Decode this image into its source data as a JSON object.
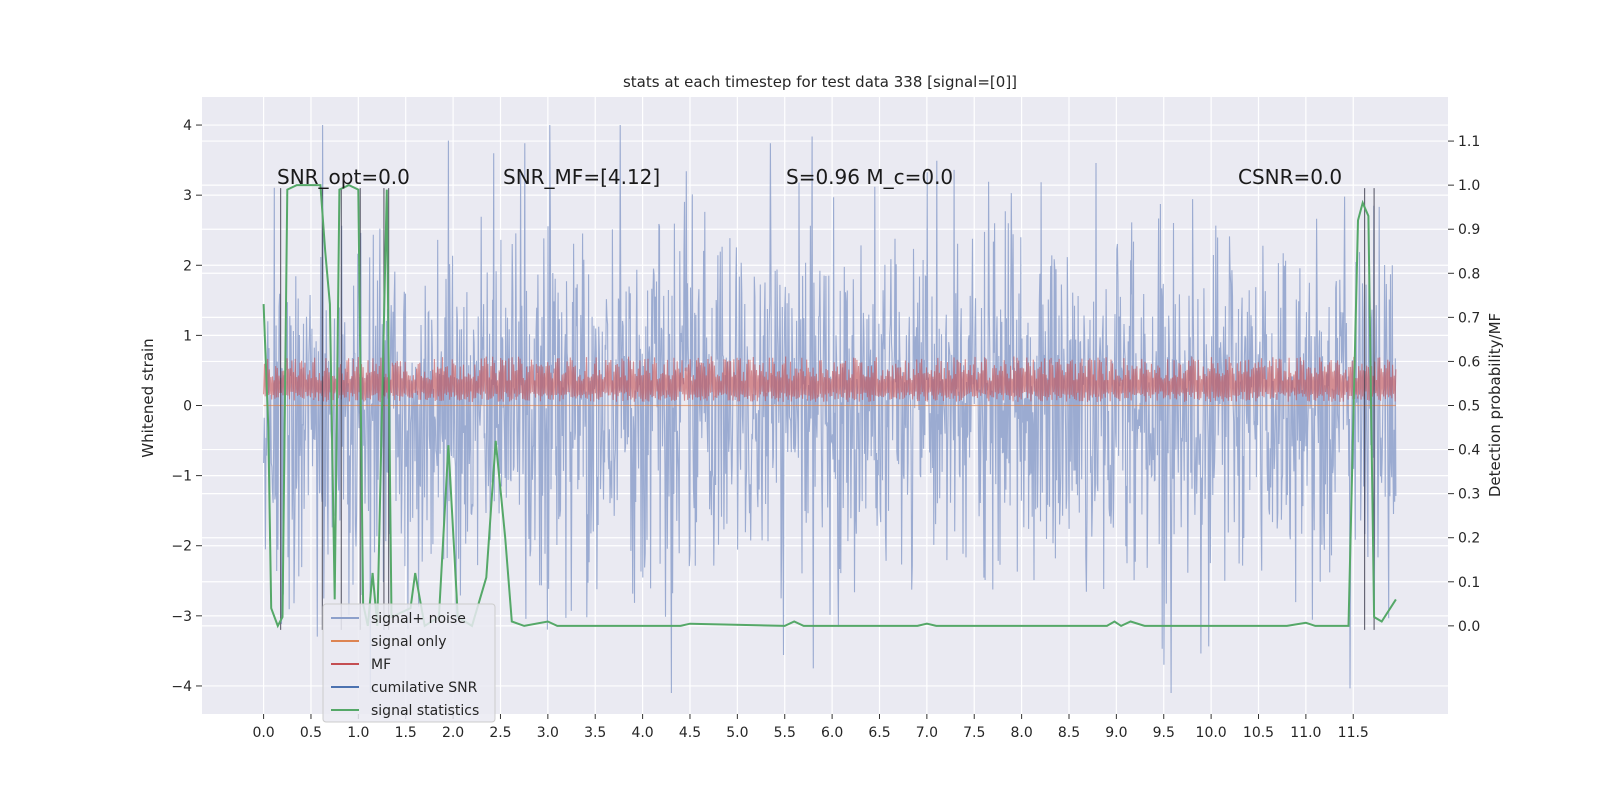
{
  "chart_data": {
    "type": "line",
    "title": "stats at each timestep for test data 338 [signal=[0]]",
    "ylabel": "Whitened strain",
    "ylabel_right": "Detection probability/MF",
    "xlim": [
      -0.65,
      12.5
    ],
    "ylim": [
      -4.4,
      4.4
    ],
    "ylim_right": [
      -0.2,
      1.2
    ],
    "x_ticks": [
      0.0,
      0.5,
      1.0,
      1.5,
      2.0,
      2.5,
      3.0,
      3.5,
      4.0,
      4.5,
      5.0,
      5.5,
      6.0,
      6.5,
      7.0,
      7.5,
      8.0,
      8.5,
      9.0,
      9.5,
      10.0,
      10.5,
      11.0,
      11.5
    ],
    "x_tick_labels": [
      "0.0",
      "0.5",
      "1.0",
      "1.5",
      "2.0",
      "2.5",
      "3.0",
      "3.5",
      "4.0",
      "4.5",
      "5.0",
      "5.5",
      "6.0",
      "6.5",
      "7.0",
      "7.5",
      "8.0",
      "8.5",
      "9.0",
      "9.5",
      "10.0",
      "10.5",
      "11.0",
      "11.5"
    ],
    "y_ticks": [
      -4,
      -3,
      -2,
      -1,
      0,
      1,
      2,
      3,
      4
    ],
    "y_tick_labels": [
      "−4",
      "−3",
      "−2",
      "−1",
      "0",
      "1",
      "2",
      "3",
      "4"
    ],
    "y_right_ticks": [
      0.0,
      0.1,
      0.2,
      0.3,
      0.4,
      0.5,
      0.6,
      0.7,
      0.8,
      0.9,
      1.0,
      1.1
    ],
    "y_right_tick_labels": [
      "0.0",
      "0.1",
      "0.2",
      "0.3",
      "0.4",
      "0.5",
      "0.6",
      "0.7",
      "0.8",
      "0.9",
      "1.0",
      "1.1"
    ],
    "grid": true,
    "legend_position": "lower-left",
    "annotations": [
      {
        "text": "SNR_opt=0.0",
        "x": 0.2,
        "y": 3.1
      },
      {
        "text": "SNR_MF=[4.12]",
        "x": 2.6,
        "y": 3.1
      },
      {
        "text": "S=0.96   M_c=0.0",
        "x": 5.6,
        "y": 3.1
      },
      {
        "text": "CSNR=0.0",
        "x": 10.4,
        "y": 3.1
      }
    ],
    "series": [
      {
        "name": "signal+ noise",
        "color": "#8da0cb",
        "axis": "left",
        "description_range": [
          -4.1,
          4.0
        ],
        "x_range": [
          0.0,
          11.95
        ]
      },
      {
        "name": "signal only",
        "color": "#dd8452",
        "axis": "left",
        "values_flat": 0.0
      },
      {
        "name": "MF",
        "color": "#c44e52",
        "axis": "left",
        "band": [
          0.0,
          0.7
        ]
      },
      {
        "name": "cumilative SNR",
        "color": "#4c72b0",
        "axis": "left"
      },
      {
        "name": "signal statistics",
        "color": "#55a868",
        "axis": "right",
        "points": [
          [
            0.0,
            0.73
          ],
          [
            0.05,
            0.45
          ],
          [
            0.08,
            0.04
          ],
          [
            0.15,
            0.0
          ],
          [
            0.2,
            0.02
          ],
          [
            0.25,
            0.99
          ],
          [
            0.35,
            1.0
          ],
          [
            0.6,
            1.0
          ],
          [
            0.65,
            0.85
          ],
          [
            0.7,
            0.73
          ],
          [
            0.75,
            0.06
          ],
          [
            0.8,
            0.99
          ],
          [
            0.9,
            1.0
          ],
          [
            1.0,
            0.99
          ],
          [
            1.05,
            0.05
          ],
          [
            1.1,
            0.0
          ],
          [
            1.15,
            0.12
          ],
          [
            1.2,
            0.0
          ],
          [
            1.3,
            0.99
          ],
          [
            1.35,
            0.02
          ],
          [
            1.45,
            0.03
          ],
          [
            1.55,
            0.04
          ],
          [
            1.6,
            0.12
          ],
          [
            1.7,
            0.0
          ],
          [
            1.85,
            0.02
          ],
          [
            1.95,
            0.41
          ],
          [
            2.05,
            0.02
          ],
          [
            2.2,
            0.0
          ],
          [
            2.35,
            0.11
          ],
          [
            2.45,
            0.42
          ],
          [
            2.55,
            0.2
          ],
          [
            2.62,
            0.01
          ],
          [
            2.75,
            0.0
          ],
          [
            3.0,
            0.01
          ],
          [
            3.1,
            0.0
          ],
          [
            4.4,
            0.0
          ],
          [
            4.5,
            0.005
          ],
          [
            5.5,
            0.0
          ],
          [
            5.6,
            0.01
          ],
          [
            5.7,
            0.0
          ],
          [
            6.9,
            0.0
          ],
          [
            7.0,
            0.005
          ],
          [
            7.1,
            0.0
          ],
          [
            8.9,
            0.0
          ],
          [
            8.98,
            0.01
          ],
          [
            9.05,
            0.0
          ],
          [
            9.15,
            0.01
          ],
          [
            9.3,
            0.0
          ],
          [
            10.8,
            0.0
          ],
          [
            11.0,
            0.007
          ],
          [
            11.1,
            0.0
          ],
          [
            11.45,
            0.0
          ],
          [
            11.55,
            0.92
          ],
          [
            11.6,
            0.96
          ],
          [
            11.66,
            0.93
          ],
          [
            11.72,
            0.02
          ],
          [
            11.8,
            0.01
          ],
          [
            11.95,
            0.06
          ]
        ]
      }
    ]
  }
}
